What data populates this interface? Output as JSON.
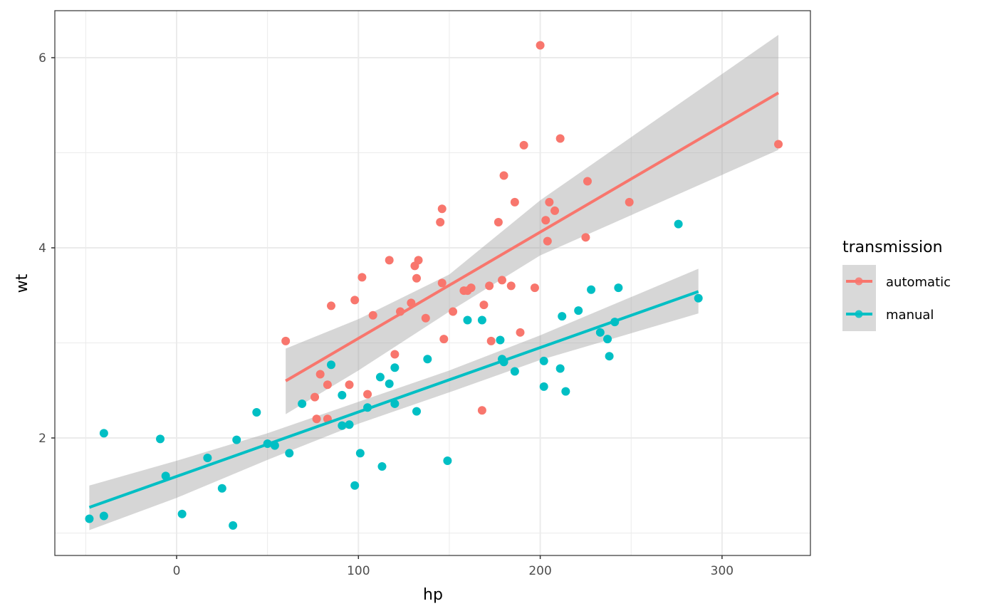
{
  "chart_data": {
    "type": "scatter",
    "title": "",
    "xlabel": "hp",
    "ylabel": "wt",
    "xlim": [
      -67,
      349
    ],
    "ylim": [
      0.78,
      6.52
    ],
    "x_ticks": [
      0,
      100,
      200,
      300
    ],
    "y_ticks": [
      2,
      4,
      6
    ],
    "x_minor_ticks": [
      -50,
      50,
      150,
      250
    ],
    "y_minor_ticks": [
      1,
      3,
      5
    ],
    "grid": true,
    "legend": {
      "title": "transmission",
      "position": "right",
      "entries": [
        "automatic",
        "manual"
      ]
    },
    "series": [
      {
        "name": "automatic",
        "color": "#F8766D",
        "points": [
          [
            60,
            3.02
          ],
          [
            76,
            2.43
          ],
          [
            77,
            2.2
          ],
          [
            79,
            2.67
          ],
          [
            83,
            2.56
          ],
          [
            83,
            2.2
          ],
          [
            85,
            3.39
          ],
          [
            95,
            2.56
          ],
          [
            98,
            3.45
          ],
          [
            102,
            3.69
          ],
          [
            105,
            2.46
          ],
          [
            108,
            3.29
          ],
          [
            117,
            3.87
          ],
          [
            120,
            2.88
          ],
          [
            123,
            3.33
          ],
          [
            129,
            3.42
          ],
          [
            131,
            3.81
          ],
          [
            132,
            3.68
          ],
          [
            133,
            3.87
          ],
          [
            137,
            3.26
          ],
          [
            145,
            4.27
          ],
          [
            146,
            4.41
          ],
          [
            146,
            3.63
          ],
          [
            147,
            3.04
          ],
          [
            152,
            3.33
          ],
          [
            158,
            3.55
          ],
          [
            160,
            3.55
          ],
          [
            162,
            3.58
          ],
          [
            169,
            3.4
          ],
          [
            168,
            2.29
          ],
          [
            172,
            3.6
          ],
          [
            173,
            3.02
          ],
          [
            177,
            4.27
          ],
          [
            179,
            3.66
          ],
          [
            180,
            4.76
          ],
          [
            184,
            3.6
          ],
          [
            186,
            4.48
          ],
          [
            189,
            3.11
          ],
          [
            191,
            5.08
          ],
          [
            197,
            3.58
          ],
          [
            200,
            6.13
          ],
          [
            203,
            4.29
          ],
          [
            204,
            4.07
          ],
          [
            205,
            4.48
          ],
          [
            208,
            4.39
          ],
          [
            211,
            5.15
          ],
          [
            225,
            4.11
          ],
          [
            226,
            4.7
          ],
          [
            249,
            4.48
          ],
          [
            331,
            5.09
          ]
        ],
        "fit": {
          "x0": 60,
          "y0": 2.6,
          "x1": 331,
          "y1": 5.63
        },
        "ci_upper": [
          [
            60,
            2.94
          ],
          [
            100,
            3.25
          ],
          [
            150,
            3.72
          ],
          [
            200,
            4.5
          ],
          [
            331,
            6.24
          ]
        ],
        "ci_lower": [
          [
            60,
            2.25
          ],
          [
            100,
            2.71
          ],
          [
            150,
            3.33
          ],
          [
            200,
            3.92
          ],
          [
            331,
            5.03
          ]
        ]
      },
      {
        "name": "manual",
        "color": "#00BFC4",
        "points": [
          [
            -48,
            1.15
          ],
          [
            -40,
            2.05
          ],
          [
            -40,
            1.18
          ],
          [
            -9,
            1.99
          ],
          [
            -6,
            1.6
          ],
          [
            3,
            1.2
          ],
          [
            17,
            1.79
          ],
          [
            25,
            1.47
          ],
          [
            31,
            1.08
          ],
          [
            33,
            1.98
          ],
          [
            44,
            2.27
          ],
          [
            50,
            1.94
          ],
          [
            54,
            1.92
          ],
          [
            62,
            1.84
          ],
          [
            69,
            2.36
          ],
          [
            85,
            2.77
          ],
          [
            91,
            2.45
          ],
          [
            91,
            2.13
          ],
          [
            95,
            2.14
          ],
          [
            101,
            1.84
          ],
          [
            98,
            1.5
          ],
          [
            105,
            2.32
          ],
          [
            112,
            2.64
          ],
          [
            113,
            1.7
          ],
          [
            117,
            2.57
          ],
          [
            120,
            2.36
          ],
          [
            120,
            2.74
          ],
          [
            132,
            2.28
          ],
          [
            138,
            2.83
          ],
          [
            149,
            1.76
          ],
          [
            160,
            3.24
          ],
          [
            168,
            3.24
          ],
          [
            178,
            3.03
          ],
          [
            179,
            2.83
          ],
          [
            180,
            2.8
          ],
          [
            186,
            2.7
          ],
          [
            202,
            2.54
          ],
          [
            202,
            2.81
          ],
          [
            211,
            2.73
          ],
          [
            212,
            3.28
          ],
          [
            214,
            2.49
          ],
          [
            221,
            3.34
          ],
          [
            228,
            3.56
          ],
          [
            233,
            3.11
          ],
          [
            237,
            3.04
          ],
          [
            238,
            2.86
          ],
          [
            241,
            3.22
          ],
          [
            243,
            3.58
          ],
          [
            276,
            4.25
          ],
          [
            287,
            3.47
          ]
        ],
        "fit": {
          "x0": -48,
          "y0": 1.27,
          "x1": 287,
          "y1": 3.54
        },
        "ci_upper": [
          [
            -48,
            1.5
          ],
          [
            0,
            1.76
          ],
          [
            50,
            2.05
          ],
          [
            100,
            2.38
          ],
          [
            150,
            2.71
          ],
          [
            200,
            3.08
          ],
          [
            287,
            3.78
          ]
        ],
        "ci_lower": [
          [
            -48,
            1.03
          ],
          [
            0,
            1.37
          ],
          [
            50,
            1.77
          ],
          [
            100,
            2.15
          ],
          [
            150,
            2.48
          ],
          [
            200,
            2.82
          ],
          [
            287,
            3.31
          ]
        ]
      }
    ]
  }
}
